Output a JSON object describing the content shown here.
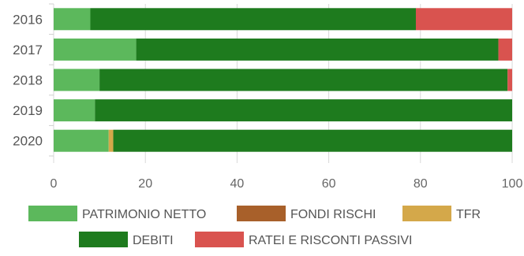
{
  "chart_data": {
    "type": "bar",
    "orientation": "horizontal",
    "stacked": true,
    "categories": [
      "2016",
      "2017",
      "2018",
      "2019",
      "2020"
    ],
    "series": [
      {
        "name": "PATRIMONIO NETTO",
        "color": "#5cb85c",
        "values": [
          8,
          18,
          10,
          9,
          12
        ]
      },
      {
        "name": "FONDI RISCHI",
        "color": "#a8602a",
        "values": [
          0,
          0,
          0,
          0,
          0
        ]
      },
      {
        "name": "TFR",
        "color": "#d4a84a",
        "values": [
          0,
          0,
          0,
          0,
          1
        ]
      },
      {
        "name": "DEBITI",
        "color": "#1e7b1e",
        "values": [
          71,
          79,
          89,
          91,
          87
        ]
      },
      {
        "name": "RATEI E RISCONTI PASSIVI",
        "color": "#d9534f",
        "values": [
          21,
          3,
          1,
          0,
          0
        ]
      }
    ],
    "xlim": [
      0,
      100
    ],
    "xticks": [
      "0",
      "20",
      "40",
      "60",
      "80",
      "100"
    ],
    "grid": true,
    "legend_position": "bottom"
  }
}
